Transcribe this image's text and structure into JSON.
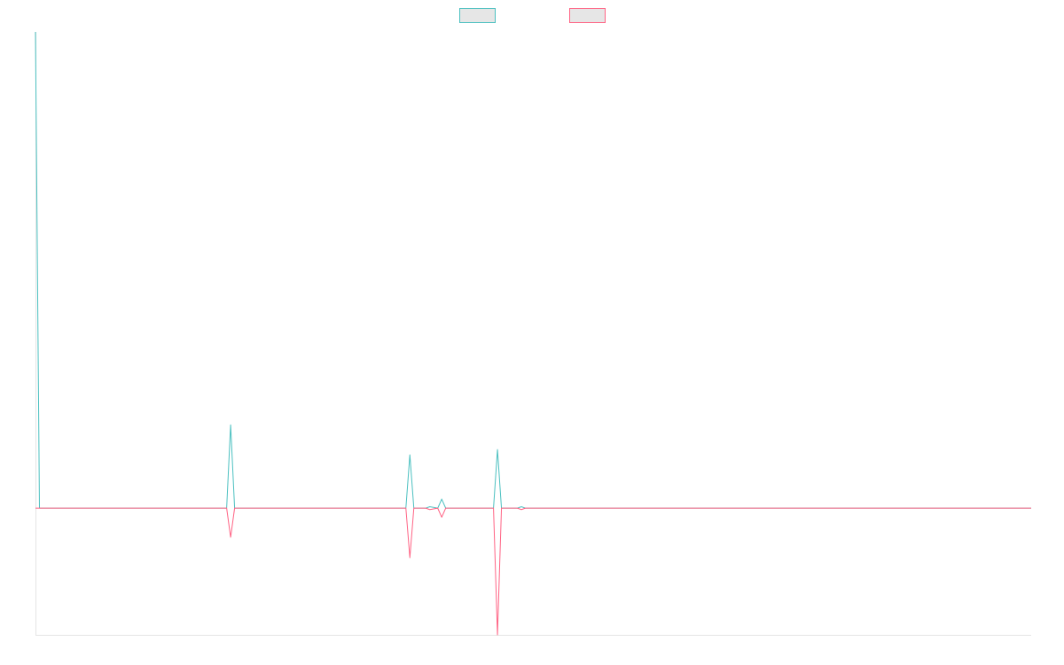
{
  "chart_data": {
    "type": "line",
    "x": [
      0,
      1,
      48,
      49,
      50,
      93,
      94,
      95,
      98,
      99,
      101,
      102,
      103,
      115,
      116,
      117,
      121,
      122,
      123,
      250
    ],
    "series": [
      {
        "color": "#4bc0c0",
        "values": [
          100,
          0,
          0,
          17.5,
          0,
          0,
          11.2,
          0,
          0,
          0.3,
          0,
          1.9,
          0,
          0,
          12.3,
          0,
          0,
          0.3,
          0,
          0
        ]
      },
      {
        "color": "#ff6384",
        "values": [
          0,
          0,
          0,
          -6.1,
          0,
          0,
          -10.4,
          0,
          0,
          -0.3,
          0,
          -1.9,
          0,
          0,
          -26.6,
          0,
          0,
          -0.3,
          0,
          0
        ]
      }
    ],
    "xlim": [
      0,
      250
    ],
    "ylim": [
      -26.6,
      100
    ],
    "legend": "top"
  }
}
